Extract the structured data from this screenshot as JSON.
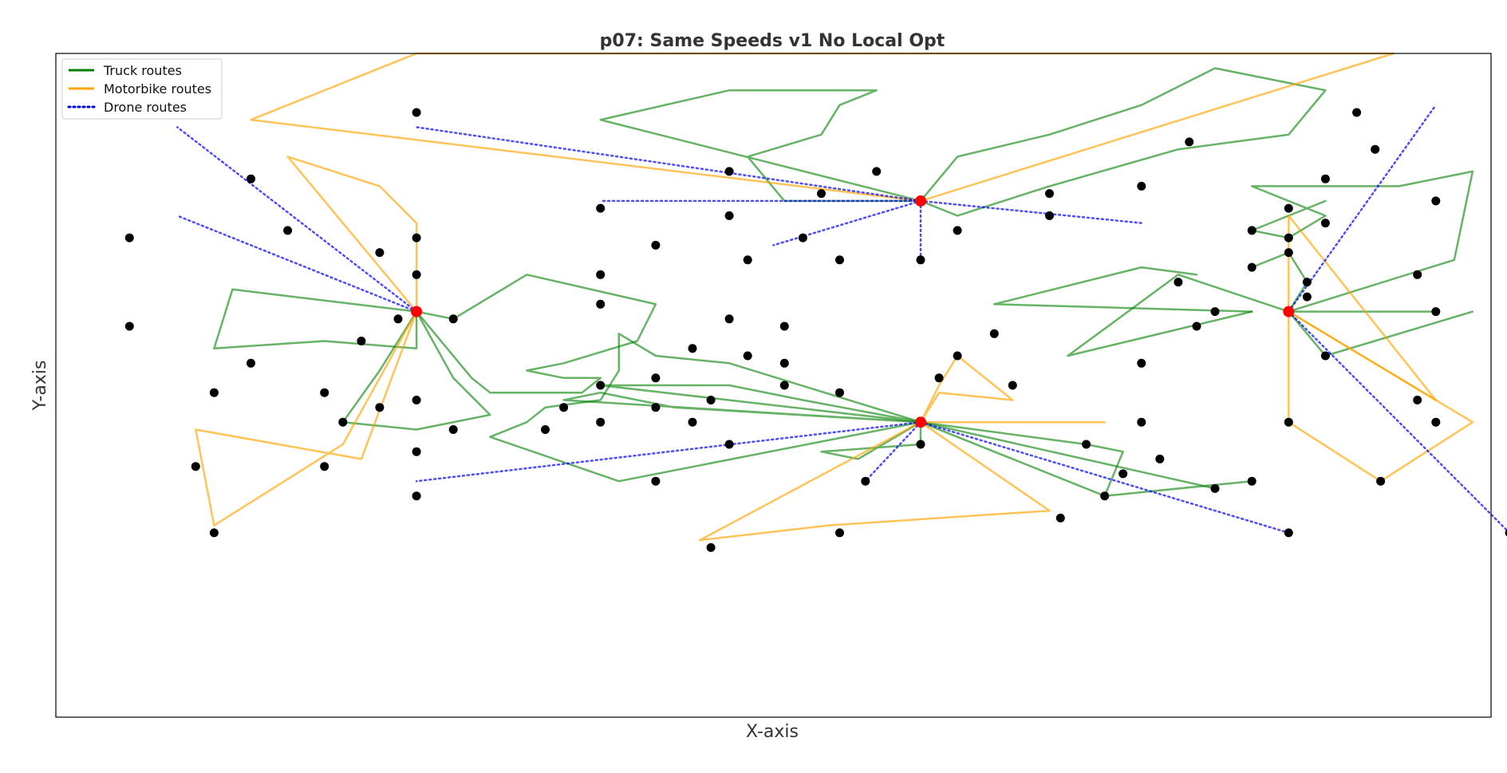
{
  "chart_data": {
    "type": "scatter",
    "title": "p07: Same Speeds v1 No Local Opt",
    "xlabel": "X-axis",
    "ylabel": "Y-axis",
    "xlim": [
      -7,
      71
    ],
    "ylim": [
      -15,
      75
    ],
    "ticks_visible": false,
    "legend": {
      "placement": "top-left",
      "entries": [
        {
          "name": "Truck routes",
          "color": "#008000",
          "style": "solid"
        },
        {
          "name": "Motorbike routes",
          "color": "#FFA500",
          "style": "solid"
        },
        {
          "name": "Drone routes",
          "color": "#0000FF",
          "style": "dotted"
        }
      ]
    },
    "colors": {
      "truck": "#008000",
      "motorbike": "#FFA500",
      "drone": "#0000FF",
      "customer": "#000000",
      "depot": "#FF0000"
    },
    "depots": [
      [
        40,
        55
      ],
      [
        12.6,
        40
      ],
      [
        40,
        25
      ],
      [
        60,
        40
      ]
    ],
    "customers": [
      [
        12.6,
        67
      ],
      [
        3.6,
        58
      ],
      [
        63.7,
        67
      ],
      [
        -3,
        50
      ],
      [
        12.6,
        50
      ],
      [
        -3,
        38
      ],
      [
        22.6,
        54
      ],
      [
        29.6,
        59
      ],
      [
        37.6,
        59
      ],
      [
        34.6,
        56
      ],
      [
        33.6,
        50
      ],
      [
        29.6,
        53
      ],
      [
        25.6,
        49
      ],
      [
        30.6,
        47
      ],
      [
        35.6,
        47
      ],
      [
        22.6,
        45
      ],
      [
        29.6,
        39
      ],
      [
        42,
        51
      ],
      [
        47,
        53
      ],
      [
        52,
        57
      ],
      [
        54.6,
        63
      ],
      [
        62,
        58
      ],
      [
        60,
        50
      ],
      [
        47,
        56
      ],
      [
        27.6,
        35
      ],
      [
        44,
        37
      ],
      [
        52,
        33
      ],
      [
        40,
        47
      ],
      [
        54,
        44
      ],
      [
        5.6,
        51
      ],
      [
        10.6,
        48
      ],
      [
        12.6,
        45
      ],
      [
        9.6,
        36
      ],
      [
        11.6,
        39
      ],
      [
        3.6,
        33
      ],
      [
        1.6,
        29
      ],
      [
        7.6,
        29
      ],
      [
        12.6,
        28
      ],
      [
        14.6,
        39
      ],
      [
        22.6,
        41
      ],
      [
        32.6,
        38
      ],
      [
        32.6,
        33
      ],
      [
        30.6,
        34
      ],
      [
        25.6,
        31
      ],
      [
        22.6,
        30
      ],
      [
        22.6,
        25
      ],
      [
        20.6,
        27
      ],
      [
        19.6,
        24
      ],
      [
        14.6,
        24
      ],
      [
        10.6,
        27
      ],
      [
        8.6,
        25
      ],
      [
        12.6,
        21
      ],
      [
        7.6,
        19
      ],
      [
        0.6,
        19
      ],
      [
        1.6,
        10
      ],
      [
        28.6,
        28
      ],
      [
        27.6,
        25
      ],
      [
        25.6,
        27
      ],
      [
        32.6,
        30
      ],
      [
        29.6,
        22
      ],
      [
        35.6,
        29
      ],
      [
        40,
        22
      ],
      [
        37,
        17
      ],
      [
        25.6,
        17
      ],
      [
        12.6,
        15
      ],
      [
        42,
        34
      ],
      [
        45,
        30
      ],
      [
        41,
        31
      ],
      [
        55,
        38
      ],
      [
        52,
        25
      ],
      [
        49,
        22
      ],
      [
        51,
        18
      ],
      [
        53,
        20
      ],
      [
        50,
        15
      ],
      [
        56,
        16
      ],
      [
        58,
        17
      ],
      [
        60,
        10
      ],
      [
        28.6,
        8
      ],
      [
        35.6,
        10
      ],
      [
        47.6,
        12
      ],
      [
        58,
        51
      ],
      [
        60,
        54
      ],
      [
        62,
        52
      ],
      [
        61,
        44
      ],
      [
        61,
        42
      ],
      [
        58,
        46
      ],
      [
        60,
        48
      ],
      [
        68,
        55
      ],
      [
        67,
        45
      ],
      [
        68,
        40
      ],
      [
        62,
        34
      ],
      [
        67,
        28
      ],
      [
        68,
        25
      ],
      [
        65,
        17
      ],
      [
        60,
        25
      ],
      [
        72,
        10
      ],
      [
        64.7,
        62
      ],
      [
        56,
        40
      ]
    ],
    "routes": [
      {
        "mode": "truck",
        "points": [
          [
            40,
            55
          ],
          [
            37.6,
            55
          ],
          [
            34.6,
            55
          ],
          [
            32.6,
            55
          ],
          [
            30.6,
            61
          ],
          [
            34.6,
            64
          ],
          [
            35.6,
            68
          ],
          [
            37.6,
            70
          ],
          [
            29.6,
            70
          ],
          [
            22.6,
            66
          ],
          [
            40,
            55
          ]
        ]
      },
      {
        "mode": "truck",
        "points": [
          [
            40,
            55
          ],
          [
            42,
            61
          ],
          [
            47,
            64
          ],
          [
            52,
            68
          ],
          [
            56,
            73
          ],
          [
            62,
            70
          ],
          [
            60,
            64
          ],
          [
            54,
            62
          ],
          [
            47,
            57
          ],
          [
            42,
            53
          ],
          [
            40,
            55
          ]
        ]
      },
      {
        "mode": "truck",
        "points": [
          [
            12.6,
            40
          ],
          [
            2.6,
            43
          ],
          [
            1.6,
            35
          ],
          [
            7.6,
            36
          ],
          [
            12.6,
            35
          ],
          [
            12.6,
            40
          ]
        ]
      },
      {
        "mode": "truck",
        "points": [
          [
            12.6,
            40
          ],
          [
            14.6,
            39
          ],
          [
            18.6,
            45
          ],
          [
            25.6,
            41
          ],
          [
            24.6,
            36
          ],
          [
            20.6,
            33
          ],
          [
            18.6,
            32
          ],
          [
            20.6,
            31
          ],
          [
            22.6,
            31
          ],
          [
            21.6,
            29
          ],
          [
            16.6,
            29
          ],
          [
            15.6,
            31
          ],
          [
            12.6,
            40
          ]
        ]
      },
      {
        "mode": "truck",
        "points": [
          [
            12.6,
            40
          ],
          [
            10.6,
            32
          ],
          [
            8.6,
            25
          ],
          [
            12.6,
            24
          ],
          [
            16.6,
            26
          ],
          [
            14.6,
            31
          ],
          [
            12.6,
            40
          ]
        ]
      },
      {
        "mode": "truck",
        "points": [
          [
            40,
            25
          ],
          [
            29.6,
            33
          ],
          [
            25.6,
            34
          ],
          [
            23.6,
            37
          ],
          [
            23.6,
            32
          ],
          [
            22.6,
            28
          ],
          [
            19.6,
            27
          ],
          [
            18.6,
            25
          ],
          [
            16.6,
            23
          ],
          [
            23.6,
            17
          ],
          [
            40,
            25
          ]
        ]
      },
      {
        "mode": "truck",
        "points": [
          [
            40,
            25
          ],
          [
            26.6,
            27
          ],
          [
            22.6,
            29
          ],
          [
            20.6,
            28
          ],
          [
            40,
            25
          ]
        ]
      },
      {
        "mode": "truck",
        "points": [
          [
            40,
            25
          ],
          [
            33.6,
            28
          ],
          [
            29.6,
            30
          ],
          [
            22.6,
            30
          ],
          [
            40,
            25
          ]
        ]
      },
      {
        "mode": "truck",
        "points": [
          [
            40,
            25
          ],
          [
            40,
            22
          ],
          [
            34.6,
            21
          ],
          [
            36.6,
            20
          ],
          [
            40,
            25
          ]
        ]
      },
      {
        "mode": "truck",
        "points": [
          [
            40,
            25
          ],
          [
            49,
            22
          ],
          [
            51,
            21
          ],
          [
            50,
            15
          ],
          [
            54,
            16
          ],
          [
            58,
            17
          ],
          [
            50,
            15
          ],
          [
            40,
            25
          ]
        ]
      },
      {
        "mode": "truck",
        "points": [
          [
            40,
            25
          ],
          [
            56,
            16
          ]
        ]
      },
      {
        "mode": "truck",
        "points": [
          [
            60,
            40
          ],
          [
            54,
            45
          ],
          [
            48,
            34
          ],
          [
            58,
            40
          ]
        ]
      },
      {
        "mode": "truck",
        "points": [
          [
            58,
            40
          ],
          [
            44,
            41
          ],
          [
            52,
            46
          ],
          [
            55,
            45
          ]
        ]
      },
      {
        "mode": "truck",
        "points": [
          [
            60,
            40
          ],
          [
            68,
            40
          ]
        ]
      },
      {
        "mode": "truck",
        "points": [
          [
            60,
            40
          ],
          [
            62,
            34
          ],
          [
            70,
            40
          ]
        ]
      },
      {
        "mode": "truck",
        "points": [
          [
            60,
            40
          ],
          [
            69,
            47
          ],
          [
            70,
            59
          ],
          [
            66,
            57
          ],
          [
            58,
            57
          ],
          [
            62,
            53
          ],
          [
            60,
            50
          ],
          [
            58,
            51
          ],
          [
            62,
            55
          ]
        ]
      },
      {
        "mode": "truck",
        "points": [
          [
            60,
            40
          ],
          [
            61,
            44
          ],
          [
            60,
            48
          ],
          [
            58,
            46
          ]
        ]
      },
      {
        "mode": "motorbike",
        "points": [
          [
            40,
            55
          ],
          [
            3.6,
            66
          ],
          [
            12.6,
            75
          ],
          [
            65.7,
            75
          ],
          [
            40,
            55
          ]
        ]
      },
      {
        "mode": "motorbike",
        "points": [
          [
            12.6,
            40
          ],
          [
            12.6,
            52
          ],
          [
            10.6,
            57
          ],
          [
            5.6,
            61
          ],
          [
            12.6,
            40
          ]
        ]
      },
      {
        "mode": "motorbike",
        "points": [
          [
            12.6,
            40
          ],
          [
            8.6,
            22
          ],
          [
            1.6,
            11
          ],
          [
            0.6,
            24
          ],
          [
            9.6,
            20
          ],
          [
            12.6,
            40
          ]
        ]
      },
      {
        "mode": "motorbike",
        "points": [
          [
            40,
            25
          ],
          [
            41,
            30
          ],
          [
            42,
            34
          ],
          [
            45,
            28
          ],
          [
            41,
            29
          ],
          [
            40,
            25
          ]
        ]
      },
      {
        "mode": "motorbike",
        "points": [
          [
            40,
            25
          ],
          [
            50,
            25
          ]
        ]
      },
      {
        "mode": "motorbike",
        "points": [
          [
            40,
            25
          ],
          [
            47,
            13
          ],
          [
            35,
            11
          ],
          [
            28,
            9
          ],
          [
            40,
            25
          ]
        ]
      },
      {
        "mode": "motorbike",
        "points": [
          [
            60,
            40
          ],
          [
            60,
            25
          ],
          [
            65,
            17
          ],
          [
            70,
            25
          ],
          [
            68,
            28
          ],
          [
            60,
            40
          ]
        ]
      },
      {
        "mode": "motorbike",
        "points": [
          [
            60,
            40
          ],
          [
            68,
            28
          ],
          [
            60,
            53
          ],
          [
            60,
            40
          ]
        ]
      },
      {
        "mode": "drone",
        "points": [
          [
            40,
            55
          ],
          [
            12.6,
            65
          ]
        ]
      },
      {
        "mode": "drone",
        "points": [
          [
            40,
            55
          ],
          [
            22.6,
            55
          ]
        ]
      },
      {
        "mode": "drone",
        "points": [
          [
            40,
            55
          ],
          [
            32,
            49
          ]
        ]
      },
      {
        "mode": "drone",
        "points": [
          [
            40,
            55
          ],
          [
            40,
            47
          ]
        ]
      },
      {
        "mode": "drone",
        "points": [
          [
            40,
            55
          ],
          [
            52,
            52
          ]
        ]
      },
      {
        "mode": "drone",
        "points": [
          [
            12.6,
            40
          ],
          [
            -0.4,
            65
          ]
        ]
      },
      {
        "mode": "drone",
        "points": [
          [
            12.6,
            40
          ],
          [
            -0.4,
            53
          ]
        ]
      },
      {
        "mode": "drone",
        "points": [
          [
            40,
            25
          ],
          [
            12.6,
            17
          ]
        ]
      },
      {
        "mode": "drone",
        "points": [
          [
            40,
            25
          ],
          [
            37,
            17
          ]
        ]
      },
      {
        "mode": "drone",
        "points": [
          [
            40,
            25
          ],
          [
            60,
            10
          ]
        ]
      },
      {
        "mode": "drone",
        "points": [
          [
            60,
            40
          ],
          [
            68,
            68
          ]
        ]
      },
      {
        "mode": "drone",
        "points": [
          [
            60,
            40
          ],
          [
            72,
            10
          ]
        ]
      }
    ]
  }
}
